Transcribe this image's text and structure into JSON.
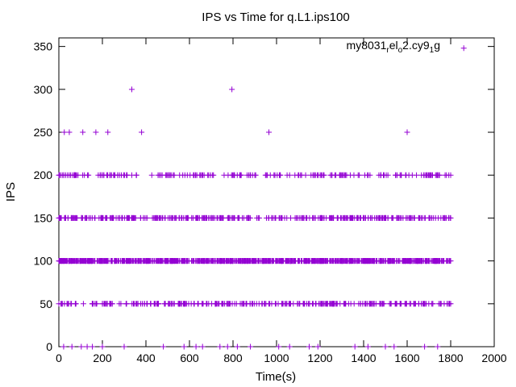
{
  "chart_data": {
    "type": "scatter",
    "title": "IPS vs Time for q.L1.ips100",
    "xlabel": "Time(s)",
    "ylabel": "IPS",
    "xlim": [
      0,
      2000
    ],
    "ylim": [
      0,
      360
    ],
    "xticks": [
      0,
      200,
      400,
      600,
      800,
      1000,
      1200,
      1400,
      1600,
      1800,
      2000
    ],
    "yticks": [
      0,
      50,
      100,
      150,
      200,
      250,
      300,
      350
    ],
    "grid": false,
    "legend_position": "top-right",
    "marker": "+",
    "color": "#9400d3",
    "series": [
      {
        "name_parts": [
          "my8031",
          "r",
          "el",
          "o",
          "2.cy9",
          "1",
          "g"
        ],
        "x_range": [
          0,
          1800
        ],
        "dense_levels": [
          {
            "y": 0,
            "x": [
              22,
              60,
              103,
              130,
              154,
              200,
              300,
              480,
              575,
              630,
              660,
              740,
              775,
              820,
              880,
              1010,
              1060,
              1150,
              1190,
              1360,
              1420,
              1500,
              1540,
              1680,
              1740
            ]
          },
          {
            "y": 50,
            "count": 300
          },
          {
            "y": 100,
            "count": 900
          },
          {
            "y": 150,
            "count": 360
          },
          {
            "y": 200,
            "count": 200
          }
        ],
        "points": [
          {
            "x": 25,
            "y": 250
          },
          {
            "x": 48,
            "y": 250
          },
          {
            "x": 110,
            "y": 250
          },
          {
            "x": 170,
            "y": 250
          },
          {
            "x": 225,
            "y": 250
          },
          {
            "x": 380,
            "y": 250
          },
          {
            "x": 965,
            "y": 250
          },
          {
            "x": 1600,
            "y": 250
          },
          {
            "x": 335,
            "y": 300
          },
          {
            "x": 795,
            "y": 300
          }
        ],
        "legend_sample": {
          "x": 1860,
          "y": 348
        }
      }
    ]
  }
}
